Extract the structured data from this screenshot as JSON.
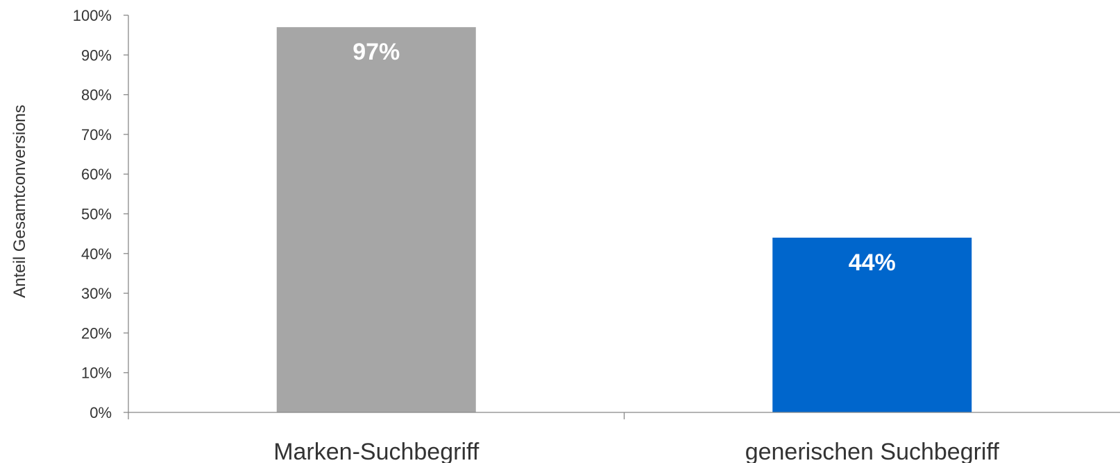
{
  "chart_data": {
    "type": "bar",
    "categories": [
      "Marken-Suchbegriff",
      "generischen Suchbegriff"
    ],
    "values": [
      97,
      44
    ],
    "data_labels": [
      "97%",
      "44%"
    ],
    "colors": [
      "#a6a6a6",
      "#0066cc"
    ],
    "title": "",
    "xlabel": "",
    "ylabel": "Anteil Gesamtconversions",
    "ylim": [
      0,
      100
    ],
    "yticks": [
      0,
      10,
      20,
      30,
      40,
      50,
      60,
      70,
      80,
      90,
      100
    ],
    "ytick_labels": [
      "0%",
      "10%",
      "20%",
      "30%",
      "40%",
      "50%",
      "60%",
      "70%",
      "80%",
      "90%",
      "100%"
    ],
    "grid": false,
    "legend": "none"
  }
}
